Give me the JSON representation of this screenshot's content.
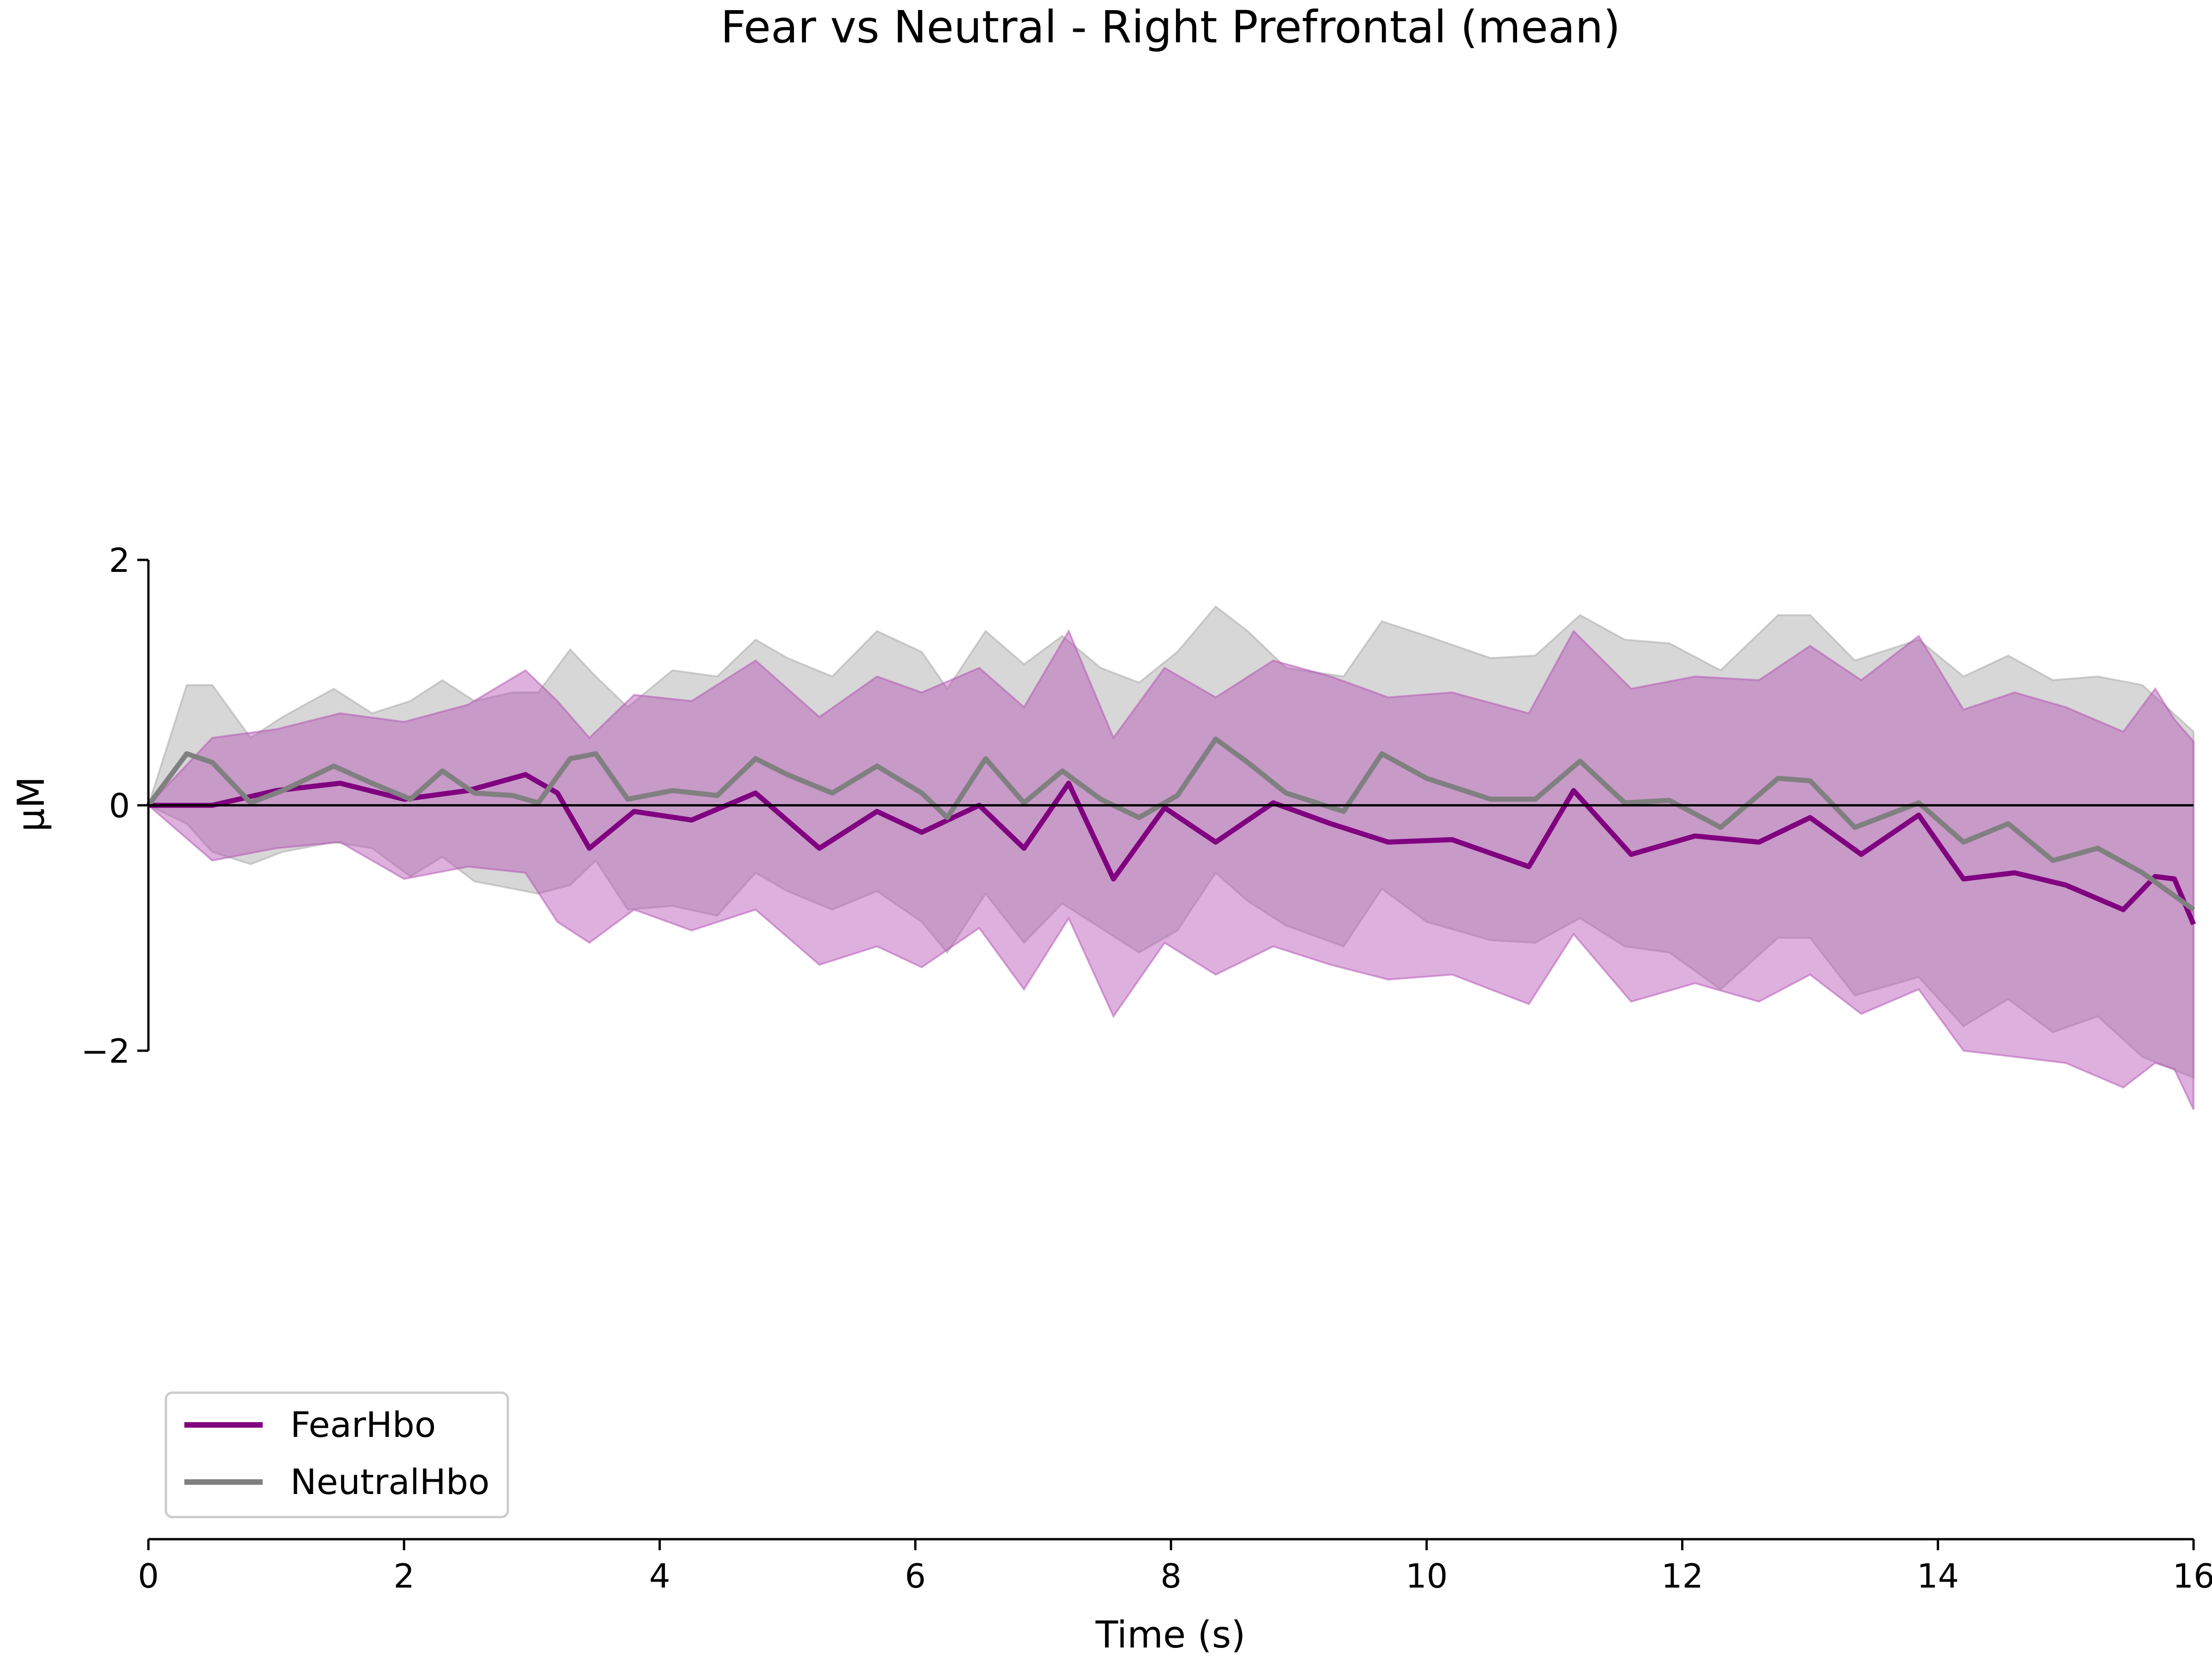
{
  "chart_data": {
    "type": "line",
    "title": "Fear vs Neutral - Right Prefrontal (mean)",
    "xlabel": "Time (s)",
    "ylabel": "µM",
    "xlim": [
      0,
      16
    ],
    "ylim": [
      -2,
      2
    ],
    "xticks": [
      0,
      2,
      4,
      6,
      8,
      10,
      12,
      14,
      16
    ],
    "xtick_labels": [
      "0",
      "2",
      "4",
      "6",
      "8",
      "10",
      "12",
      "14",
      "16"
    ],
    "yticks": [
      2,
      0,
      -2
    ],
    "ytick_labels": [
      "2",
      "0",
      "−2"
    ],
    "zero_line": true,
    "grid": false,
    "legend_position": "lower-left",
    "series": [
      {
        "name": "FearHbo",
        "color": "#800080",
        "band_color": "#b44fb4",
        "x": [
          0,
          0.5,
          1.0,
          1.5,
          2.0,
          2.5,
          2.95,
          3.2,
          3.45,
          3.8,
          4.25,
          4.75,
          5.25,
          5.7,
          6.05,
          6.5,
          6.85,
          7.2,
          7.55,
          7.95,
          8.35,
          8.8,
          9.25,
          9.7,
          10.2,
          10.8,
          11.15,
          11.6,
          12.1,
          12.6,
          13.0,
          13.4,
          13.85,
          14.2,
          14.6,
          15.0,
          15.45,
          15.7,
          15.85,
          16.0
        ],
        "values": [
          0,
          0.0,
          0.12,
          0.18,
          0.05,
          0.12,
          0.25,
          0.1,
          -0.35,
          -0.05,
          -0.12,
          0.1,
          -0.35,
          -0.05,
          -0.22,
          0.0,
          -0.35,
          0.18,
          -0.6,
          -0.02,
          -0.3,
          0.02,
          -0.15,
          -0.3,
          -0.28,
          -0.5,
          0.12,
          -0.4,
          -0.25,
          -0.3,
          -0.1,
          -0.4,
          -0.08,
          -0.6,
          -0.55,
          -0.65,
          -0.85,
          -0.58,
          -0.6,
          -0.97
        ],
        "upper": [
          0,
          0.55,
          0.62,
          0.75,
          0.68,
          0.82,
          1.1,
          0.85,
          0.55,
          0.9,
          0.85,
          1.18,
          0.72,
          1.05,
          0.92,
          1.12,
          0.8,
          1.42,
          0.55,
          1.12,
          0.88,
          1.18,
          1.05,
          0.88,
          0.92,
          0.75,
          1.42,
          0.95,
          1.05,
          1.02,
          1.3,
          1.02,
          1.38,
          0.78,
          0.92,
          0.8,
          0.6,
          0.95,
          0.7,
          0.52
        ],
        "lower": [
          0,
          -0.45,
          -0.35,
          -0.3,
          -0.6,
          -0.5,
          -0.55,
          -0.95,
          -1.12,
          -0.85,
          -1.02,
          -0.85,
          -1.3,
          -1.15,
          -1.32,
          -1.0,
          -1.5,
          -0.92,
          -1.72,
          -1.12,
          -1.38,
          -1.15,
          -1.3,
          -1.42,
          -1.38,
          -1.62,
          -1.05,
          -1.6,
          -1.45,
          -1.6,
          -1.38,
          -1.7,
          -1.5,
          -2.0,
          -2.05,
          -2.1,
          -2.3,
          -2.1,
          -2.15,
          -2.48
        ]
      },
      {
        "name": "NeutralHbo",
        "color": "#808080",
        "band_color": "#a6a6a6",
        "x": [
          0,
          0.3,
          0.5,
          0.8,
          1.05,
          1.45,
          1.75,
          2.05,
          2.3,
          2.55,
          2.85,
          3.05,
          3.3,
          3.5,
          3.75,
          4.1,
          4.45,
          4.75,
          5.0,
          5.35,
          5.7,
          6.05,
          6.25,
          6.55,
          6.85,
          7.15,
          7.45,
          7.75,
          8.05,
          8.35,
          8.6,
          8.9,
          9.35,
          9.65,
          10.0,
          10.5,
          10.85,
          11.2,
          11.55,
          11.9,
          12.3,
          12.75,
          13.0,
          13.35,
          13.85,
          14.2,
          14.55,
          14.9,
          15.25,
          15.6,
          16.0
        ],
        "values": [
          0,
          0.42,
          0.35,
          0.02,
          0.12,
          0.32,
          0.18,
          0.05,
          0.28,
          0.1,
          0.08,
          0.02,
          0.38,
          0.42,
          0.05,
          0.12,
          0.08,
          0.38,
          0.25,
          0.1,
          0.32,
          0.1,
          -0.1,
          0.38,
          0.02,
          0.28,
          0.05,
          -0.1,
          0.08,
          0.54,
          0.35,
          0.1,
          -0.05,
          0.42,
          0.22,
          0.05,
          0.05,
          0.36,
          0.02,
          0.04,
          -0.18,
          0.22,
          0.2,
          -0.18,
          0.02,
          -0.3,
          -0.15,
          -0.45,
          -0.35,
          -0.55,
          -0.85
        ],
        "upper": [
          0,
          0.98,
          0.98,
          0.55,
          0.72,
          0.95,
          0.75,
          0.85,
          1.02,
          0.85,
          0.92,
          0.92,
          1.27,
          1.05,
          0.8,
          1.1,
          1.05,
          1.35,
          1.2,
          1.05,
          1.42,
          1.25,
          0.95,
          1.42,
          1.15,
          1.38,
          1.12,
          1.0,
          1.25,
          1.62,
          1.42,
          1.12,
          1.05,
          1.5,
          1.38,
          1.2,
          1.22,
          1.55,
          1.35,
          1.32,
          1.1,
          1.55,
          1.55,
          1.18,
          1.35,
          1.05,
          1.22,
          1.02,
          1.05,
          0.98,
          0.6
        ],
        "lower": [
          0,
          -0.15,
          -0.38,
          -0.48,
          -0.38,
          -0.3,
          -0.35,
          -0.58,
          -0.42,
          -0.62,
          -0.68,
          -0.72,
          -0.65,
          -0.45,
          -0.85,
          -0.82,
          -0.9,
          -0.55,
          -0.7,
          -0.85,
          -0.7,
          -0.95,
          -1.2,
          -0.72,
          -1.12,
          -0.8,
          -1.0,
          -1.2,
          -1.02,
          -0.55,
          -0.78,
          -0.98,
          -1.15,
          -0.68,
          -0.95,
          -1.1,
          -1.12,
          -0.92,
          -1.15,
          -1.2,
          -1.5,
          -1.08,
          -1.08,
          -1.55,
          -1.4,
          -1.8,
          -1.58,
          -1.85,
          -1.72,
          -2.05,
          -2.22
        ]
      }
    ]
  }
}
